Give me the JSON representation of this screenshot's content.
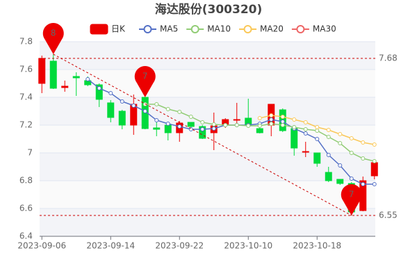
{
  "chart_data": {
    "type": "candlestick",
    "title": "海达股份(300320)",
    "categories": [
      "2023-09-06",
      null,
      null,
      null,
      null,
      null,
      "2023-09-14",
      null,
      null,
      null,
      null,
      null,
      "2023-09-22",
      null,
      null,
      null,
      null,
      null,
      "2023-10-10",
      null,
      null,
      null,
      null,
      null,
      "2023-10-18",
      null,
      null,
      null,
      null,
      null
    ],
    "ylim": [
      6.4,
      7.8
    ],
    "yticks": [
      7.8,
      7.6,
      7.4,
      7.2,
      7,
      6.8,
      6.6,
      6.4
    ],
    "grid": true,
    "candles": {
      "name": "日K",
      "up_color": "#ec0000",
      "down_color": "#00da3c",
      "open": [
        7.5,
        7.66,
        7.47,
        7.55,
        7.52,
        7.49,
        7.36,
        7.3,
        7.2,
        7.4,
        7.18,
        7.2,
        7.145,
        7.22,
        7.19,
        7.145,
        7.2,
        7.235,
        7.25,
        7.175,
        7.2,
        7.31,
        7.175,
        7.005,
        7.0,
        6.86,
        6.81,
        6.78,
        6.585,
        6.835
      ],
      "close": [
        7.68,
        7.465,
        7.48,
        7.54,
        7.49,
        7.385,
        7.255,
        7.2,
        7.35,
        7.175,
        7.17,
        7.145,
        7.215,
        7.19,
        7.105,
        7.195,
        7.24,
        7.24,
        7.2,
        7.145,
        7.35,
        7.16,
        7.035,
        7.01,
        6.925,
        6.8,
        6.78,
        6.575,
        6.8,
        6.93
      ],
      "low": [
        7.43,
        7.46,
        7.44,
        7.41,
        7.48,
        7.33,
        7.22,
        7.17,
        7.13,
        7.17,
        7.12,
        7.09,
        7.08,
        7.17,
        7.1,
        7.02,
        7.18,
        7.19,
        7.19,
        7.14,
        7.12,
        7.15,
        6.98,
        6.97,
        6.9,
        6.79,
        6.77,
        6.55,
        6.58,
        6.81
      ],
      "high": [
        7.7,
        7.71,
        7.52,
        7.58,
        7.55,
        7.5,
        7.38,
        7.31,
        7.42,
        7.4,
        7.22,
        7.22,
        7.23,
        7.22,
        7.2,
        7.29,
        7.25,
        7.36,
        7.39,
        7.2,
        7.35,
        7.32,
        7.18,
        7.08,
        7.0,
        6.9,
        6.81,
        6.79,
        6.83,
        6.94
      ]
    },
    "series": [
      {
        "name": "MA5",
        "color": "#5470c6",
        "values": [
          null,
          null,
          null,
          null,
          7.53,
          7.465,
          7.43,
          7.37,
          7.34,
          7.3,
          7.235,
          7.21,
          7.19,
          7.17,
          7.17,
          7.175,
          7.2,
          7.2,
          7.2,
          7.21,
          7.24,
          7.225,
          7.175,
          7.14,
          7.1,
          6.985,
          6.91,
          6.815,
          6.775,
          6.775
        ]
      },
      {
        "name": "MA10",
        "color": "#91cc75",
        "values": [
          null,
          null,
          null,
          null,
          null,
          null,
          null,
          null,
          null,
          7.35,
          7.35,
          7.315,
          7.295,
          7.26,
          7.22,
          7.205,
          7.2,
          7.2,
          7.195,
          7.195,
          7.21,
          7.2,
          7.185,
          7.17,
          7.16,
          7.115,
          7.07,
          7.0,
          6.96,
          6.94
        ]
      },
      {
        "name": "MA20",
        "color": "#fac858",
        "values": [
          null,
          null,
          null,
          null,
          null,
          null,
          null,
          null,
          null,
          null,
          null,
          null,
          null,
          null,
          null,
          null,
          null,
          null,
          null,
          7.25,
          7.27,
          7.26,
          7.24,
          7.22,
          7.185,
          7.165,
          7.135,
          7.105,
          7.075,
          7.06
        ]
      },
      {
        "name": "MA30",
        "color": "#ee6666",
        "values": [
          null,
          null,
          null,
          null,
          null,
          null,
          null,
          null,
          null,
          null,
          null,
          null,
          null,
          null,
          null,
          null,
          null,
          null,
          null,
          null,
          null,
          null,
          null,
          null,
          null,
          null,
          null,
          null,
          null,
          null
        ]
      }
    ],
    "mark_lines": [
      7.68,
      6.55
    ],
    "mark_points": {
      "index": [
        1,
        9,
        27
      ],
      "values": [
        7.71,
        7.4,
        6.55
      ],
      "value_labels": [
        "8",
        "7",
        "7"
      ],
      "color": "#ec0000"
    }
  }
}
